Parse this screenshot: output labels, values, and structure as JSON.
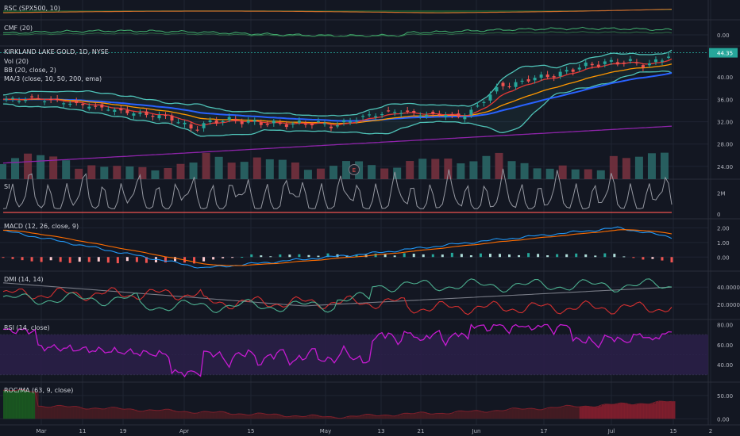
{
  "colors": {
    "background": "#131722",
    "grid": "#1f2433",
    "separator": "#2a2e39",
    "axis_text": "#b2b5be",
    "label_text": "#d1d4dc",
    "up": "#26a69a",
    "down": "#ef5350",
    "vol_up": "#2b6b6a",
    "vol_down": "#7a3240",
    "bb": "#4fc3b8",
    "ma10": "#e53935",
    "ma50": "#ff9800",
    "ma200": "#2962ff",
    "ma_long": "#8e24aa",
    "rsi": "#c51bd1",
    "rsi_band": "#2a1f47",
    "macd": "#2196f3",
    "signal": "#ff6d00",
    "dmi_plus": "#4caf8f",
    "dmi_minus": "#d32f2f",
    "adx": "#787b86",
    "si": "#9598a1",
    "price_tag": "#26a69a"
  },
  "panes": {
    "rsc": {
      "label": "RSC (SPX500, 10)"
    },
    "cmf": {
      "label": "CMF (20)",
      "ticks": [
        "0.00"
      ]
    },
    "main": {
      "title": "KIRKLAND LAKE GOLD, 1D, NYSE",
      "legend": [
        "Vol (20)",
        "BB (20, close, 2)",
        "MA/3 (close, 10, 50, 200, ema)"
      ],
      "ticks": [
        "40.00",
        "36.00",
        "32.00",
        "28.00",
        "24.00"
      ],
      "last_price": "44.35",
      "event_badge": "E"
    },
    "si": {
      "label": "SI",
      "ticks": [
        "2M",
        "0"
      ]
    },
    "macd": {
      "label": "MACD (12, 26, close, 9)",
      "ticks": [
        "2.00",
        "1.00",
        "0.00"
      ]
    },
    "dmi": {
      "label": "DMI (14, 14)",
      "ticks": [
        "40.0000",
        "20.0000"
      ]
    },
    "rsi": {
      "label": "RSI (14, close)",
      "ticks": [
        "80.00",
        "60.00",
        "40.00"
      ]
    },
    "roc": {
      "label": "ROC/MA (63, 9, close)",
      "ticks": [
        "50.00",
        "0.00"
      ]
    }
  },
  "time_axis": [
    "Mar",
    "11",
    "19",
    "Apr",
    "15",
    "May",
    "13",
    "21",
    "Jun",
    "17",
    "Jul",
    "15",
    "2"
  ],
  "chart_data": {
    "type": "candlestick",
    "title": "KIRKLAND LAKE GOLD, 1D, NYSE",
    "ylim": [
      22,
      45
    ],
    "y_ticks": [
      24,
      28,
      32,
      36,
      40
    ],
    "last_close": 44.35,
    "price_path": [
      [
        0,
        35.8
      ],
      [
        10,
        36.2
      ],
      [
        20,
        35.4
      ],
      [
        30,
        34.6
      ],
      [
        40,
        33.6
      ],
      [
        52,
        32.8
      ],
      [
        60,
        30.6
      ],
      [
        64,
        31.8
      ],
      [
        70,
        32.4
      ],
      [
        80,
        31.8
      ],
      [
        90,
        31.6
      ],
      [
        98,
        31.8
      ],
      [
        104,
        31.2
      ],
      [
        110,
        32.4
      ],
      [
        116,
        33.2
      ],
      [
        124,
        33.9
      ],
      [
        132,
        33.2
      ],
      [
        138,
        33.4
      ],
      [
        144,
        32.8
      ],
      [
        150,
        35.2
      ],
      [
        156,
        38.5
      ],
      [
        160,
        38.6
      ],
      [
        166,
        39.8
      ],
      [
        174,
        40.4
      ],
      [
        182,
        42.0
      ],
      [
        190,
        42.6
      ],
      [
        196,
        42.8
      ],
      [
        202,
        42.1
      ],
      [
        206,
        42.9
      ],
      [
        210,
        44.35
      ]
    ],
    "volume_relative": [
      0.82,
      0.72,
      0.55,
      0.4,
      0.45,
      0.5,
      0.82,
      0.72,
      0.6,
      0.45,
      0.55,
      0.5,
      0.62,
      0.72,
      0.8,
      0.55,
      0.48,
      0.3,
      1.0,
      0.8,
      0.55
    ],
    "indicator_ranges": {
      "si": [
        0,
        3
      ],
      "macd": [
        -0.8,
        2.4
      ],
      "dmi": [
        5,
        55
      ],
      "rsi": [
        25,
        82
      ],
      "roc": [
        -8,
        72
      ]
    }
  }
}
